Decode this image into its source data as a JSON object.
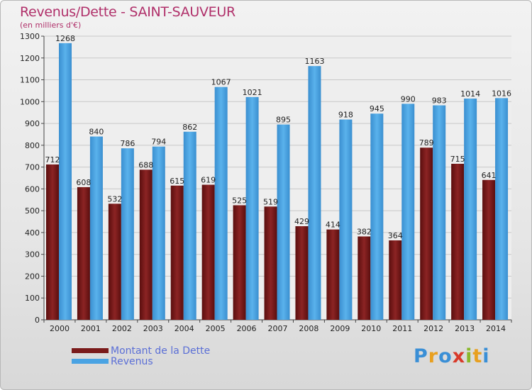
{
  "header": {
    "title": "Revenus/Dette - SAINT-SAUVEUR",
    "subtitle": "(en milliers d'€)"
  },
  "legend": {
    "dette_label": "Montant de la Dette",
    "revenus_label": "Revenus"
  },
  "logo": {
    "text": "Proxiti"
  },
  "colors": {
    "dette": "#7a1a1a",
    "revenus": "#4aa3e3",
    "title": "#b0306a",
    "legend_text": "#5b6fd6"
  },
  "chart_data": {
    "type": "bar",
    "title": "Revenus/Dette - SAINT-SAUVEUR",
    "ylabel": "(en milliers d'€)",
    "xlabel": "",
    "ylim": [
      0,
      1300
    ],
    "yticks": [
      0,
      100,
      200,
      300,
      400,
      500,
      600,
      700,
      800,
      900,
      1000,
      1100,
      1200,
      1300
    ],
    "grid": true,
    "categories": [
      "2000",
      "2001",
      "2002",
      "2003",
      "2004",
      "2005",
      "2006",
      "2007",
      "2008",
      "2009",
      "2010",
      "2011",
      "2012",
      "2013",
      "2014"
    ],
    "series": [
      {
        "name": "Montant de la Dette",
        "values": [
          712,
          608,
          532,
          688,
          615,
          619,
          525,
          519,
          429,
          414,
          382,
          364,
          789,
          715,
          641
        ]
      },
      {
        "name": "Revenus",
        "values": [
          1268,
          840,
          786,
          794,
          862,
          1067,
          1021,
          895,
          1163,
          918,
          945,
          990,
          983,
          1014,
          1016
        ]
      }
    ]
  }
}
